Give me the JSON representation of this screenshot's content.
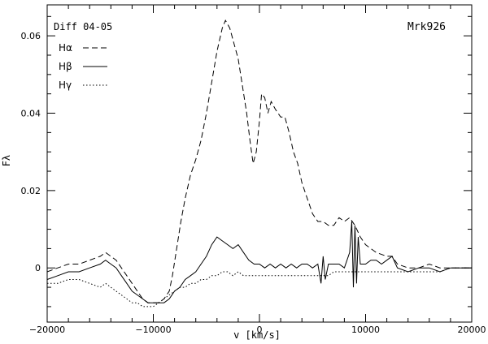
{
  "chart_data": {
    "type": "line",
    "title": "",
    "annotation_top_left": "Diff 04-05",
    "annotation_top_right": "Mrk926",
    "xlabel": "v [km/s]",
    "ylabel": "Fλ",
    "xlim": [
      -20000,
      20000
    ],
    "ylim": [
      -0.014,
      0.068
    ],
    "xticks": [
      -20000,
      -10000,
      0,
      10000,
      20000
    ],
    "xtick_labels": [
      "−20000",
      "−10000",
      "0",
      "10000",
      "20000"
    ],
    "yticks": [
      0,
      0.02,
      0.04,
      0.06
    ],
    "ytick_labels": [
      "0",
      "0.02",
      "0.04",
      "0.06"
    ],
    "legend_position": "top-left",
    "series": [
      {
        "name": "Hα",
        "style": "dashed",
        "points": [
          [
            -20000,
            -0.001
          ],
          [
            -19000,
            0.0
          ],
          [
            -18000,
            0.001
          ],
          [
            -17000,
            0.001
          ],
          [
            -16000,
            0.002
          ],
          [
            -15000,
            0.003
          ],
          [
            -14500,
            0.004
          ],
          [
            -14000,
            0.003
          ],
          [
            -13500,
            0.002
          ],
          [
            -13000,
            0.0
          ],
          [
            -12500,
            -0.002
          ],
          [
            -12000,
            -0.004
          ],
          [
            -11500,
            -0.006
          ],
          [
            -11000,
            -0.008
          ],
          [
            -10500,
            -0.009
          ],
          [
            -10000,
            -0.009
          ],
          [
            -9500,
            -0.009
          ],
          [
            -9000,
            -0.008
          ],
          [
            -8500,
            -0.006
          ],
          [
            -8200,
            -0.002
          ],
          [
            -7800,
            0.005
          ],
          [
            -7400,
            0.012
          ],
          [
            -7000,
            0.018
          ],
          [
            -6500,
            0.024
          ],
          [
            -6000,
            0.028
          ],
          [
            -5500,
            0.033
          ],
          [
            -5000,
            0.04
          ],
          [
            -4500,
            0.048
          ],
          [
            -4000,
            0.056
          ],
          [
            -3500,
            0.062
          ],
          [
            -3200,
            0.064
          ],
          [
            -2800,
            0.062
          ],
          [
            -2400,
            0.058
          ],
          [
            -2000,
            0.054
          ],
          [
            -1600,
            0.047
          ],
          [
            -1200,
            0.04
          ],
          [
            -900,
            0.033
          ],
          [
            -600,
            0.027
          ],
          [
            -300,
            0.03
          ],
          [
            0,
            0.038
          ],
          [
            200,
            0.045
          ],
          [
            500,
            0.044
          ],
          [
            800,
            0.04
          ],
          [
            1100,
            0.043
          ],
          [
            1500,
            0.041
          ],
          [
            2000,
            0.039
          ],
          [
            2400,
            0.039
          ],
          [
            2800,
            0.035
          ],
          [
            3200,
            0.03
          ],
          [
            3600,
            0.027
          ],
          [
            4000,
            0.022
          ],
          [
            4500,
            0.018
          ],
          [
            5000,
            0.014
          ],
          [
            5500,
            0.012
          ],
          [
            6000,
            0.012
          ],
          [
            6500,
            0.011
          ],
          [
            7000,
            0.011
          ],
          [
            7500,
            0.013
          ],
          [
            8000,
            0.012
          ],
          [
            8500,
            0.013
          ],
          [
            9000,
            0.011
          ],
          [
            9500,
            0.008
          ],
          [
            10000,
            0.006
          ],
          [
            10500,
            0.005
          ],
          [
            11000,
            0.004
          ],
          [
            12000,
            0.003
          ],
          [
            12500,
            0.003
          ],
          [
            13000,
            0.001
          ],
          [
            14000,
            0.0
          ],
          [
            15000,
            0.0
          ],
          [
            16000,
            0.001
          ],
          [
            17000,
            0.0
          ],
          [
            18000,
            0.0
          ],
          [
            19000,
            0.0
          ],
          [
            20000,
            0.0
          ]
        ]
      },
      {
        "name": "Hβ",
        "style": "solid",
        "points": [
          [
            -20000,
            -0.003
          ],
          [
            -19000,
            -0.002
          ],
          [
            -18000,
            -0.001
          ],
          [
            -17000,
            -0.001
          ],
          [
            -16000,
            0.0
          ],
          [
            -15000,
            0.001
          ],
          [
            -14500,
            0.002
          ],
          [
            -14000,
            0.001
          ],
          [
            -13500,
            0.0
          ],
          [
            -13000,
            -0.002
          ],
          [
            -12500,
            -0.004
          ],
          [
            -12000,
            -0.006
          ],
          [
            -11500,
            -0.007
          ],
          [
            -11000,
            -0.008
          ],
          [
            -10500,
            -0.009
          ],
          [
            -10000,
            -0.009
          ],
          [
            -9500,
            -0.009
          ],
          [
            -9000,
            -0.009
          ],
          [
            -8500,
            -0.008
          ],
          [
            -8000,
            -0.006
          ],
          [
            -7500,
            -0.005
          ],
          [
            -7000,
            -0.003
          ],
          [
            -6500,
            -0.002
          ],
          [
            -6000,
            -0.001
          ],
          [
            -5500,
            0.001
          ],
          [
            -5000,
            0.003
          ],
          [
            -4500,
            0.006
          ],
          [
            -4000,
            0.008
          ],
          [
            -3500,
            0.007
          ],
          [
            -3000,
            0.006
          ],
          [
            -2500,
            0.005
          ],
          [
            -2000,
            0.006
          ],
          [
            -1500,
            0.004
          ],
          [
            -1000,
            0.002
          ],
          [
            -500,
            0.001
          ],
          [
            0,
            0.001
          ],
          [
            500,
            0.0
          ],
          [
            1000,
            0.001
          ],
          [
            1500,
            0.0
          ],
          [
            2000,
            0.001
          ],
          [
            2500,
            0.0
          ],
          [
            3000,
            0.001
          ],
          [
            3500,
            0.0
          ],
          [
            4000,
            0.001
          ],
          [
            4500,
            0.001
          ],
          [
            5000,
            0.0
          ],
          [
            5500,
            0.001
          ],
          [
            5800,
            -0.004
          ],
          [
            6000,
            0.003
          ],
          [
            6200,
            -0.003
          ],
          [
            6500,
            0.001
          ],
          [
            7000,
            0.001
          ],
          [
            7500,
            0.001
          ],
          [
            8000,
            0.0
          ],
          [
            8500,
            0.004
          ],
          [
            8700,
            0.012
          ],
          [
            8850,
            -0.005
          ],
          [
            9000,
            0.011
          ],
          [
            9150,
            -0.004
          ],
          [
            9300,
            0.008
          ],
          [
            9500,
            0.001
          ],
          [
            10000,
            0.001
          ],
          [
            10500,
            0.002
          ],
          [
            11000,
            0.002
          ],
          [
            11500,
            0.001
          ],
          [
            12000,
            0.002
          ],
          [
            12500,
            0.003
          ],
          [
            13000,
            0.0
          ],
          [
            14000,
            -0.001
          ],
          [
            15000,
            0.0
          ],
          [
            16000,
            0.0
          ],
          [
            17000,
            -0.001
          ],
          [
            18000,
            0.0
          ],
          [
            19000,
            0.0
          ],
          [
            20000,
            0.0
          ]
        ]
      },
      {
        "name": "Hγ",
        "style": "dotted",
        "points": [
          [
            -20000,
            -0.004
          ],
          [
            -19000,
            -0.004
          ],
          [
            -18000,
            -0.003
          ],
          [
            -17000,
            -0.003
          ],
          [
            -16000,
            -0.004
          ],
          [
            -15000,
            -0.005
          ],
          [
            -14500,
            -0.004
          ],
          [
            -14000,
            -0.005
          ],
          [
            -13500,
            -0.006
          ],
          [
            -13000,
            -0.007
          ],
          [
            -12500,
            -0.008
          ],
          [
            -12000,
            -0.009
          ],
          [
            -11500,
            -0.009
          ],
          [
            -11000,
            -0.01
          ],
          [
            -10500,
            -0.01
          ],
          [
            -10000,
            -0.01
          ],
          [
            -9500,
            -0.009
          ],
          [
            -9000,
            -0.008
          ],
          [
            -8500,
            -0.007
          ],
          [
            -8000,
            -0.006
          ],
          [
            -7500,
            -0.005
          ],
          [
            -7000,
            -0.005
          ],
          [
            -6500,
            -0.004
          ],
          [
            -6000,
            -0.004
          ],
          [
            -5500,
            -0.003
          ],
          [
            -5000,
            -0.003
          ],
          [
            -4500,
            -0.002
          ],
          [
            -4000,
            -0.002
          ],
          [
            -3500,
            -0.001
          ],
          [
            -3000,
            -0.001
          ],
          [
            -2500,
            -0.002
          ],
          [
            -2000,
            -0.001
          ],
          [
            -1500,
            -0.002
          ],
          [
            -1000,
            -0.002
          ],
          [
            -500,
            -0.002
          ],
          [
            0,
            -0.002
          ],
          [
            500,
            -0.002
          ],
          [
            1000,
            -0.002
          ],
          [
            1500,
            -0.002
          ],
          [
            2000,
            -0.002
          ],
          [
            2500,
            -0.002
          ],
          [
            3000,
            -0.002
          ],
          [
            3500,
            -0.002
          ],
          [
            4000,
            -0.002
          ],
          [
            4500,
            -0.002
          ],
          [
            5000,
            -0.002
          ],
          [
            5500,
            -0.002
          ],
          [
            6000,
            -0.002
          ],
          [
            6500,
            -0.002
          ],
          [
            7000,
            -0.001
          ],
          [
            7500,
            -0.001
          ],
          [
            8000,
            -0.001
          ],
          [
            8500,
            -0.001
          ],
          [
            9000,
            -0.001
          ],
          [
            9500,
            -0.001
          ],
          [
            10000,
            -0.001
          ],
          [
            10500,
            -0.001
          ],
          [
            11000,
            -0.001
          ],
          [
            11500,
            -0.001
          ],
          [
            12000,
            -0.001
          ],
          [
            12500,
            -0.001
          ],
          [
            13000,
            -0.001
          ],
          [
            14000,
            -0.001
          ],
          [
            15000,
            -0.001
          ],
          [
            16000,
            -0.001
          ],
          [
            17000,
            -0.001
          ],
          [
            18000,
            0.0
          ],
          [
            19000,
            0.0
          ],
          [
            20000,
            0.0
          ]
        ]
      }
    ]
  }
}
